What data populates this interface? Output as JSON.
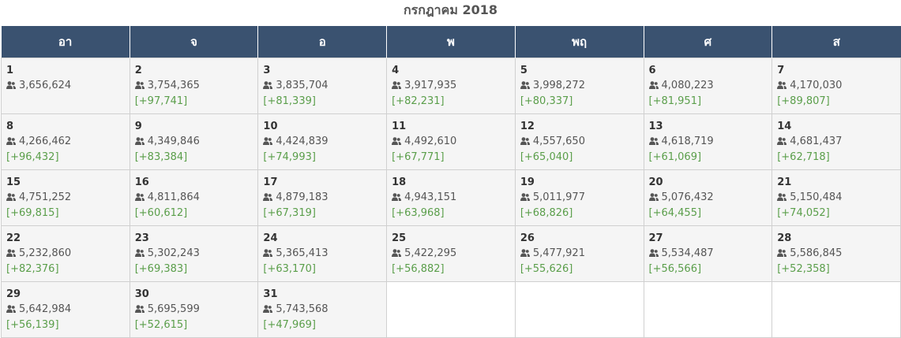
{
  "title": "กรกฎาคม 2018",
  "weekdays": [
    "อา",
    "จ",
    "อ",
    "พ",
    "พฤ",
    "ศ",
    "ส"
  ],
  "colors": {
    "header_bg": "#3a5270",
    "increase": "#5a9e4a",
    "cell_bg": "#f5f5f5"
  },
  "icon": "users-icon",
  "days": [
    {
      "day": "1",
      "count": "3,656,624",
      "diff": ""
    },
    {
      "day": "2",
      "count": "3,754,365",
      "diff": "[+97,741]"
    },
    {
      "day": "3",
      "count": "3,835,704",
      "diff": "[+81,339]"
    },
    {
      "day": "4",
      "count": "3,917,935",
      "diff": "[+82,231]"
    },
    {
      "day": "5",
      "count": "3,998,272",
      "diff": "[+80,337]"
    },
    {
      "day": "6",
      "count": "4,080,223",
      "diff": "[+81,951]"
    },
    {
      "day": "7",
      "count": "4,170,030",
      "diff": "[+89,807]"
    },
    {
      "day": "8",
      "count": "4,266,462",
      "diff": "[+96,432]"
    },
    {
      "day": "9",
      "count": "4,349,846",
      "diff": "[+83,384]"
    },
    {
      "day": "10",
      "count": "4,424,839",
      "diff": "[+74,993]"
    },
    {
      "day": "11",
      "count": "4,492,610",
      "diff": "[+67,771]"
    },
    {
      "day": "12",
      "count": "4,557,650",
      "diff": "[+65,040]"
    },
    {
      "day": "13",
      "count": "4,618,719",
      "diff": "[+61,069]"
    },
    {
      "day": "14",
      "count": "4,681,437",
      "diff": "[+62,718]"
    },
    {
      "day": "15",
      "count": "4,751,252",
      "diff": "[+69,815]"
    },
    {
      "day": "16",
      "count": "4,811,864",
      "diff": "[+60,612]"
    },
    {
      "day": "17",
      "count": "4,879,183",
      "diff": "[+67,319]"
    },
    {
      "day": "18",
      "count": "4,943,151",
      "diff": "[+63,968]"
    },
    {
      "day": "19",
      "count": "5,011,977",
      "diff": "[+68,826]"
    },
    {
      "day": "20",
      "count": "5,076,432",
      "diff": "[+64,455]"
    },
    {
      "day": "21",
      "count": "5,150,484",
      "diff": "[+74,052]"
    },
    {
      "day": "22",
      "count": "5,232,860",
      "diff": "[+82,376]"
    },
    {
      "day": "23",
      "count": "5,302,243",
      "diff": "[+69,383]"
    },
    {
      "day": "24",
      "count": "5,365,413",
      "diff": "[+63,170]"
    },
    {
      "day": "25",
      "count": "5,422,295",
      "diff": "[+56,882]"
    },
    {
      "day": "26",
      "count": "5,477,921",
      "diff": "[+55,626]"
    },
    {
      "day": "27",
      "count": "5,534,487",
      "diff": "[+56,566]"
    },
    {
      "day": "28",
      "count": "5,586,845",
      "diff": "[+52,358]"
    },
    {
      "day": "29",
      "count": "5,642,984",
      "diff": "[+56,139]"
    },
    {
      "day": "30",
      "count": "5,695,599",
      "diff": "[+52,615]"
    },
    {
      "day": "31",
      "count": "5,743,568",
      "diff": "[+47,969]"
    }
  ]
}
